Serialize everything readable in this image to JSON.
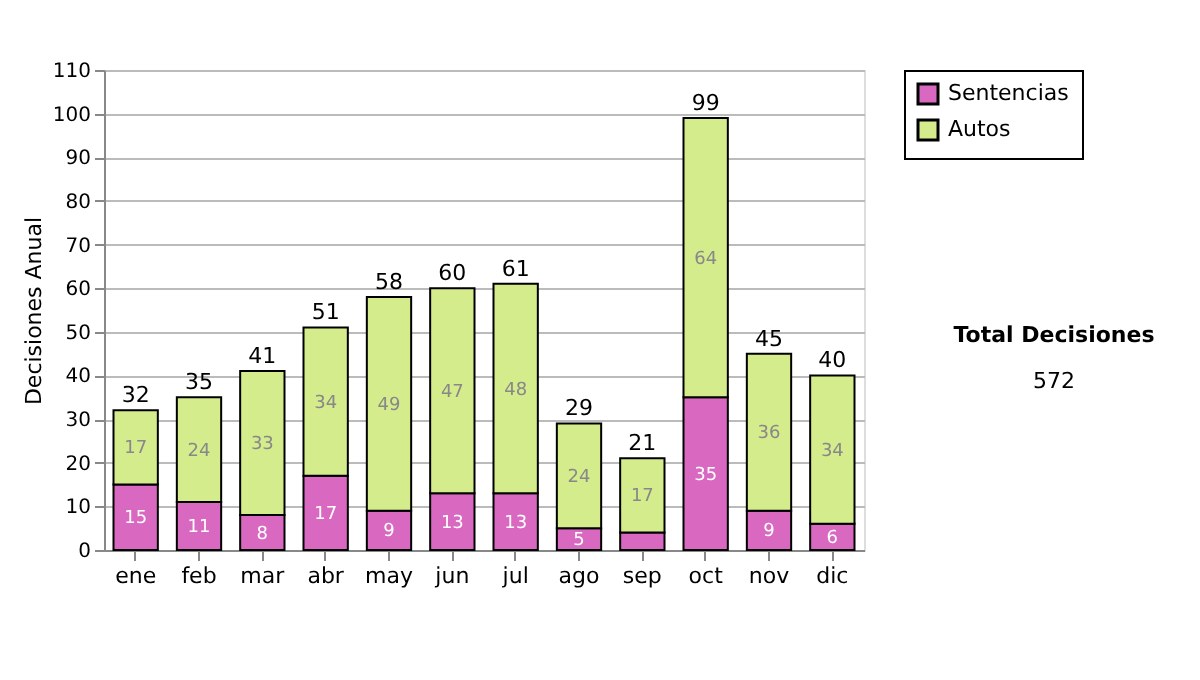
{
  "chart_data": {
    "type": "bar",
    "stacked": true,
    "ylabel": "Decisiones Anual",
    "categories": [
      "ene",
      "feb",
      "mar",
      "abr",
      "may",
      "jun",
      "jul",
      "ago",
      "sep",
      "oct",
      "nov",
      "dic"
    ],
    "series": [
      {
        "name": "Sentencias",
        "color": "#d868c0",
        "values": [
          15,
          11,
          8,
          17,
          9,
          13,
          13,
          5,
          4,
          35,
          9,
          6
        ],
        "value_labels": [
          "15",
          "11",
          "8",
          "17",
          "9",
          "13",
          "13",
          "5",
          null,
          "35",
          "9",
          "6"
        ]
      },
      {
        "name": "Autos",
        "color": "#d4ec8c",
        "values": [
          17,
          24,
          33,
          34,
          49,
          47,
          48,
          24,
          17,
          64,
          36,
          34
        ],
        "value_labels": [
          "17",
          "24",
          "33",
          "34",
          "49",
          "47",
          "48",
          "24",
          "17",
          "64",
          "36",
          "34"
        ]
      }
    ],
    "totals": [
      "32",
      "35",
      "41",
      "51",
      "58",
      "60",
      "61",
      "29",
      "21",
      "99",
      "45",
      "40"
    ],
    "ylim": [
      0,
      110
    ],
    "yticks": [
      0,
      10,
      20,
      30,
      40,
      50,
      60,
      70,
      80,
      90,
      100,
      110
    ],
    "grid": "y",
    "legend": "right",
    "annotations": [
      "Total Decisiones",
      "572"
    ]
  }
}
